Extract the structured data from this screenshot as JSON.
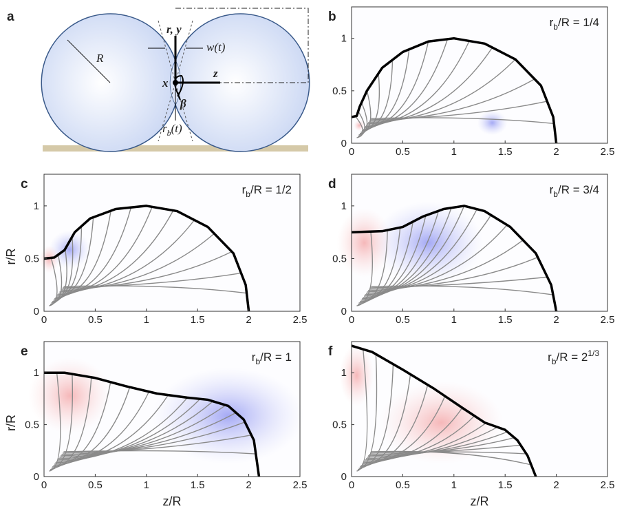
{
  "diagram": {
    "label": "a",
    "R": "R",
    "ry": "r, y",
    "w": "w(t)",
    "x": "x",
    "z": "z",
    "beta": "β",
    "rb": "r",
    "rb_sub": "b",
    "rb_rest": "(t)"
  },
  "chart_data": [
    {
      "type": "line",
      "label": "b",
      "annotation": {
        "text": "r",
        "sub": "b",
        "rest": "/R = 1/4"
      },
      "x": [
        0,
        0.05,
        0.08,
        0.15,
        0.3,
        0.5,
        0.75,
        1,
        1.3,
        1.6,
        1.85,
        1.97,
        2
      ],
      "y": [
        0.25,
        0.26,
        0.35,
        0.5,
        0.72,
        0.87,
        0.97,
        1,
        0.95,
        0.8,
        0.55,
        0.25,
        0
      ],
      "color": "#000000",
      "xlim": [
        0,
        2.5
      ],
      "ylim": [
        0,
        1.3
      ],
      "xticks": [
        0,
        0.5,
        1,
        1.5,
        2,
        2.5
      ],
      "yticks": [
        0,
        0.5,
        1
      ]
    },
    {
      "type": "line",
      "label": "c",
      "annotation": {
        "text": "r",
        "sub": "b",
        "rest": "/R = 1/2"
      },
      "ylabel": "r/R",
      "x": [
        0,
        0.1,
        0.2,
        0.3,
        0.45,
        0.7,
        1,
        1.3,
        1.6,
        1.85,
        1.97,
        2
      ],
      "y": [
        0.5,
        0.51,
        0.58,
        0.75,
        0.88,
        0.97,
        1,
        0.95,
        0.8,
        0.55,
        0.25,
        0
      ],
      "color": "#000000",
      "xlim": [
        0,
        2.5
      ],
      "ylim": [
        0,
        1.3
      ],
      "xticks": [
        0,
        0.5,
        1,
        1.5,
        2,
        2.5
      ],
      "yticks": [
        0,
        0.5,
        1
      ]
    },
    {
      "type": "line",
      "label": "d",
      "annotation": {
        "text": "r",
        "sub": "b",
        "rest": "/R = 3/4"
      },
      "x": [
        0,
        0.3,
        0.5,
        0.7,
        0.9,
        1.1,
        1.3,
        1.55,
        1.8,
        1.95,
        2
      ],
      "y": [
        0.75,
        0.76,
        0.8,
        0.9,
        0.97,
        1,
        0.95,
        0.8,
        0.55,
        0.25,
        0
      ],
      "color": "#000000",
      "xlim": [
        0,
        2.5
      ],
      "ylim": [
        0,
        1.3
      ],
      "xticks": [
        0,
        0.5,
        1,
        1.5,
        2,
        2.5
      ],
      "yticks": [
        0,
        0.5,
        1
      ]
    },
    {
      "type": "line",
      "label": "e",
      "annotation": {
        "text": "r",
        "sub": "b",
        "rest": "/R = 1"
      },
      "ylabel": "r/R",
      "xlabel": "z/R",
      "x": [
        0,
        0.2,
        0.5,
        0.8,
        1.1,
        1.4,
        1.6,
        1.8,
        1.95,
        2.05,
        2.1
      ],
      "y": [
        1,
        1,
        0.95,
        0.87,
        0.8,
        0.76,
        0.74,
        0.68,
        0.55,
        0.35,
        0
      ],
      "color": "#000000",
      "xlim": [
        0,
        2.5
      ],
      "ylim": [
        0,
        1.3
      ],
      "xticks": [
        0,
        0.5,
        1,
        1.5,
        2,
        2.5
      ],
      "yticks": [
        0,
        0.5,
        1
      ]
    },
    {
      "type": "line",
      "label": "f",
      "annotation": {
        "text": "r",
        "sub": "b",
        "rest": "/R = 2",
        "sup": "1/3"
      },
      "xlabel": "z/R",
      "x": [
        0,
        0.2,
        0.5,
        0.8,
        1.1,
        1.3,
        1.5,
        1.62,
        1.72,
        1.8
      ],
      "y": [
        1.26,
        1.2,
        1.03,
        0.85,
        0.65,
        0.52,
        0.45,
        0.35,
        0.2,
        0
      ],
      "color": "#000000",
      "xlim": [
        0,
        2.5
      ],
      "ylim": [
        0,
        1.3
      ],
      "xticks": [
        0,
        0.5,
        1,
        1.5,
        2,
        2.5
      ],
      "yticks": [
        0,
        0.5,
        1
      ]
    }
  ]
}
